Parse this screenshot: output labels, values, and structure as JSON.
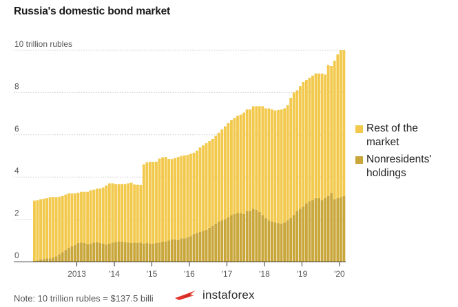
{
  "title": "Russia's domestic bond market",
  "note": "Note: 10 trillion rubles = $137.5 billi",
  "watermark": "instaforex",
  "colors": {
    "rest": "#f2c94c",
    "nonres": "#c9a63a",
    "grid": "#cccccc",
    "brand": "#e5332a"
  },
  "legend": [
    {
      "label_lines": [
        "Rest of the",
        "market"
      ],
      "color_key": "rest"
    },
    {
      "label_lines": [
        "Nonresidents'",
        "holdings"
      ],
      "color_key": "nonres"
    }
  ],
  "chart_data": {
    "type": "bar",
    "stacked": true,
    "title": "Russia's domestic bond market",
    "ylabel": "",
    "ylim": [
      0,
      10
    ],
    "y_ticks": [
      0,
      2,
      4,
      6,
      8,
      10
    ],
    "y_tick_labels": [
      "0",
      "2",
      "4",
      "6",
      "8",
      "10 trillion rubles"
    ],
    "x_tick_labels": [
      "2013",
      "'14",
      "'15",
      "'16",
      "'17",
      "'18",
      "'19",
      "'20"
    ],
    "x_tick_positions": [
      14,
      26,
      38,
      50,
      62,
      74,
      86,
      98
    ],
    "period": "monthly",
    "series": [
      {
        "name": "Nonresidents' holdings",
        "values": [
          0.03,
          0.05,
          0.1,
          0.12,
          0.15,
          0.15,
          0.18,
          0.25,
          0.35,
          0.45,
          0.55,
          0.65,
          0.72,
          0.78,
          0.88,
          0.9,
          0.88,
          0.82,
          0.85,
          0.9,
          0.92,
          0.88,
          0.85,
          0.8,
          0.85,
          0.9,
          0.92,
          0.95,
          0.95,
          0.92,
          0.9,
          0.88,
          0.9,
          0.88,
          0.9,
          0.85,
          0.88,
          0.85,
          0.85,
          0.88,
          0.9,
          0.95,
          0.95,
          1.0,
          1.05,
          1.05,
          1.02,
          1.1,
          1.1,
          1.15,
          1.2,
          1.3,
          1.35,
          1.4,
          1.45,
          1.5,
          1.6,
          1.7,
          1.8,
          1.9,
          1.95,
          2.0,
          2.1,
          2.2,
          2.25,
          2.3,
          2.3,
          2.25,
          2.4,
          2.4,
          2.5,
          2.45,
          2.35,
          2.2,
          2.05,
          1.95,
          1.9,
          1.85,
          1.82,
          1.8,
          1.85,
          1.95,
          2.05,
          2.2,
          2.4,
          2.5,
          2.6,
          2.75,
          2.85,
          2.9,
          3.0,
          3.0,
          2.9,
          3.0,
          3.1,
          3.25,
          2.95,
          3.0,
          3.05,
          3.1
        ]
      },
      {
        "name": "Rest of the market",
        "values": [
          2.85,
          2.85,
          2.85,
          2.85,
          2.85,
          2.9,
          2.88,
          2.8,
          2.72,
          2.65,
          2.62,
          2.58,
          2.5,
          2.45,
          2.38,
          2.4,
          2.42,
          2.48,
          2.52,
          2.5,
          2.53,
          2.58,
          2.65,
          2.8,
          2.85,
          2.8,
          2.75,
          2.72,
          2.72,
          2.75,
          2.8,
          2.85,
          2.75,
          2.75,
          2.72,
          3.75,
          3.82,
          3.87,
          3.87,
          3.85,
          3.97,
          3.98,
          4.0,
          3.85,
          3.8,
          3.85,
          3.93,
          3.9,
          3.92,
          3.9,
          3.9,
          3.85,
          3.9,
          4.0,
          4.05,
          4.1,
          4.1,
          4.1,
          4.15,
          4.2,
          4.3,
          4.4,
          4.45,
          4.5,
          4.55,
          4.6,
          4.65,
          4.8,
          4.8,
          4.8,
          4.85,
          4.9,
          5.0,
          5.15,
          5.2,
          5.3,
          5.3,
          5.3,
          5.35,
          5.4,
          5.4,
          5.45,
          5.7,
          5.8,
          5.7,
          5.8,
          5.9,
          5.85,
          5.85,
          5.9,
          5.9,
          5.9,
          6.0,
          5.85,
          6.2,
          6.0,
          6.55,
          6.8,
          6.95,
          6.9
        ]
      }
    ]
  }
}
